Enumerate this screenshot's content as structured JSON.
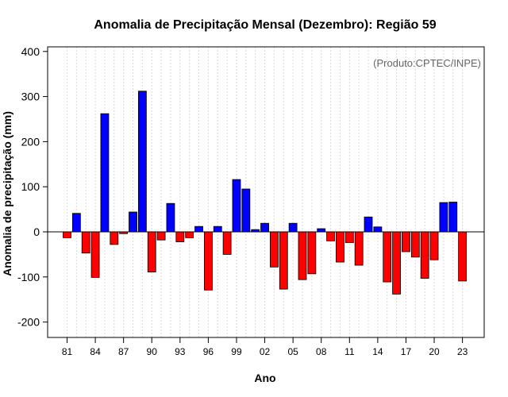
{
  "chart_data": {
    "type": "bar",
    "title": "Anomalia de Precipitação Mensal (Dezembro): Região 59",
    "xlabel": "Ano",
    "ylabel": "Anomalia de precipitação (mm)",
    "credit": "(Produto:CPTEC/INPE)",
    "ylim": [
      -240,
      410
    ],
    "yticks": [
      -200,
      -100,
      0,
      100,
      200,
      300,
      400
    ],
    "xtick_labels": [
      "81",
      "84",
      "87",
      "90",
      "93",
      "96",
      "99",
      "02",
      "05",
      "08",
      "11",
      "14",
      "17",
      "20",
      "23"
    ],
    "grid": "vertical dotted",
    "positive_color": "#0000ff",
    "negative_color": "#ff0000",
    "categories": [
      "1981",
      "1982",
      "1983",
      "1984",
      "1985",
      "1986",
      "1987",
      "1988",
      "1989",
      "1990",
      "1991",
      "1992",
      "1993",
      "1994",
      "1995",
      "1996",
      "1997",
      "1998",
      "1999",
      "2000",
      "2001",
      "2002",
      "2003",
      "2004",
      "2005",
      "2006",
      "2007",
      "2008",
      "2009",
      "2010",
      "2011",
      "2012",
      "2013",
      "2014",
      "2015",
      "2016",
      "2017",
      "2018",
      "2019",
      "2020",
      "2021",
      "2022",
      "2023"
    ],
    "values": [
      -13,
      41,
      -47,
      -101,
      262,
      -28,
      -4,
      44,
      312,
      -89,
      -18,
      63,
      -22,
      -13,
      12,
      -129,
      12,
      -50,
      116,
      95,
      5,
      19,
      -78,
      -127,
      19,
      -106,
      -93,
      7,
      -20,
      -67,
      -24,
      -74,
      33,
      11,
      -111,
      -138,
      -44,
      -56,
      -103,
      -62,
      65,
      66,
      -109
    ]
  }
}
